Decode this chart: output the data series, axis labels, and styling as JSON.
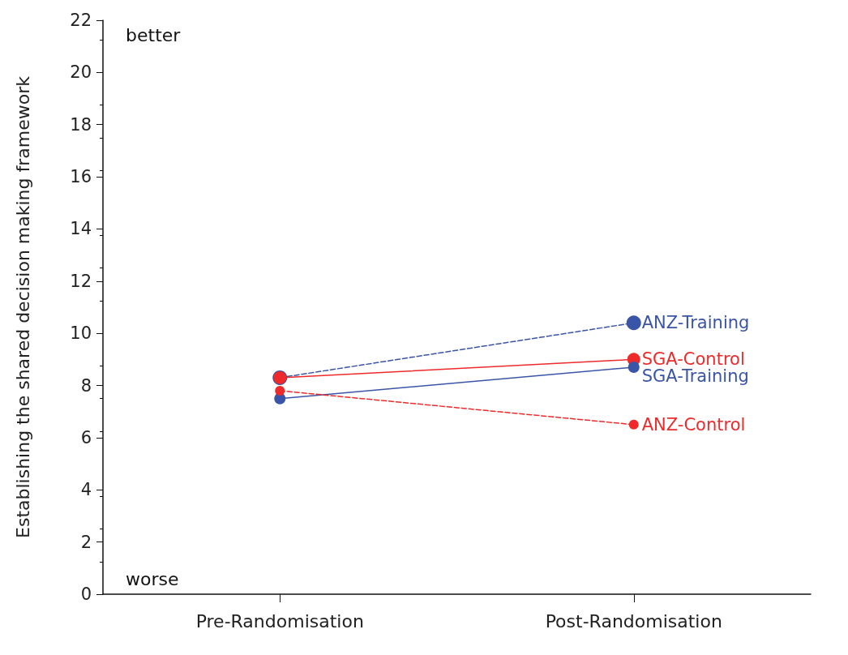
{
  "chart_data": {
    "type": "line",
    "ylabel": "Establishing the shared decision making framework",
    "categories": [
      "Pre-Randomisation",
      "Post-Randomisation"
    ],
    "series": [
      {
        "name": "ANZ-Training",
        "color": "#3a55a8",
        "values": [
          8.3,
          10.4
        ],
        "line_style": "dashed"
      },
      {
        "name": "SGA-Control",
        "color": "#ee2a2a",
        "values": [
          8.3,
          9.0
        ],
        "line_style": "solid"
      },
      {
        "name": "SGA-Training",
        "color": "#3a55a8",
        "values": [
          7.5,
          8.7
        ],
        "line_style": "solid"
      },
      {
        "name": "ANZ-Control",
        "color": "#ee2a2a",
        "values": [
          7.8,
          6.5
        ],
        "line_style": "dashed"
      }
    ],
    "ylim": [
      0,
      22
    ],
    "yticks": [
      0,
      2,
      4,
      6,
      8,
      10,
      12,
      14,
      16,
      18,
      20,
      22
    ],
    "annotations": [
      "better",
      "worse"
    ],
    "grid": false,
    "legend": false,
    "marker": "circle"
  }
}
